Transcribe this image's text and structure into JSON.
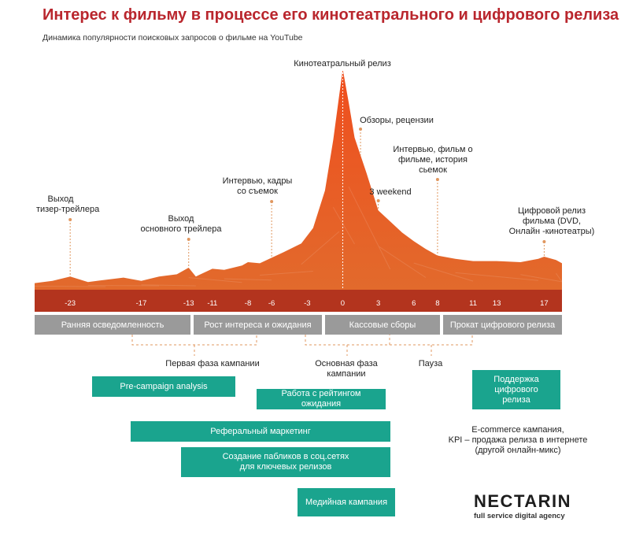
{
  "header": {
    "title": "Интерес к фильму в процессе его кинотеатрального и цифрового релиза",
    "subtitle": "Динамика популярности поисковых запросов о фильме на YouTube"
  },
  "colors": {
    "title": "#b9262d",
    "area_top": "#ef4e1e",
    "area_bottom": "#e06a2a",
    "phase_bar": "#9a9a9a",
    "campaign_bar": "#1aa48e",
    "axis_strip": "#b3341e"
  },
  "chart_data": {
    "type": "area",
    "title": "Динамика популярности поисковых запросов о фильме на YouTube",
    "x_ticks": [
      -23,
      -17,
      -13,
      -11,
      -8,
      -6,
      -3,
      0,
      3,
      6,
      8,
      11,
      13,
      17
    ],
    "xlim": [
      -26,
      18.5
    ],
    "ylim": [
      0,
      100
    ],
    "points": [
      [
        -26,
        3
      ],
      [
        -24.5,
        4
      ],
      [
        -23,
        6
      ],
      [
        -21.5,
        3.5
      ],
      [
        -20,
        4.5
      ],
      [
        -18.5,
        5.5
      ],
      [
        -17,
        4
      ],
      [
        -15.5,
        6
      ],
      [
        -14,
        7
      ],
      [
        -13,
        10
      ],
      [
        -12.4,
        6
      ],
      [
        -11,
        9.5
      ],
      [
        -10,
        9
      ],
      [
        -8.5,
        11
      ],
      [
        -8,
        12.5
      ],
      [
        -7,
        12
      ],
      [
        -6,
        14.5
      ],
      [
        -5,
        17
      ],
      [
        -3.5,
        21
      ],
      [
        -2.5,
        28
      ],
      [
        -1.5,
        45
      ],
      [
        -0.8,
        68
      ],
      [
        -0.3,
        88
      ],
      [
        0,
        100
      ],
      [
        0.5,
        85
      ],
      [
        1,
        69
      ],
      [
        2,
        53
      ],
      [
        3,
        36
      ],
      [
        4,
        31
      ],
      [
        5,
        26
      ],
      [
        6,
        22
      ],
      [
        7,
        18.5
      ],
      [
        8,
        15.5
      ],
      [
        9.5,
        14
      ],
      [
        11,
        13
      ],
      [
        13,
        13
      ],
      [
        15,
        12.5
      ],
      [
        16.5,
        14
      ],
      [
        17,
        15
      ],
      [
        18,
        13.5
      ],
      [
        18.5,
        12
      ]
    ],
    "annotations": [
      {
        "x": -23,
        "label_lines": [
          "Выход",
          "тизер-трейлера"
        ]
      },
      {
        "x": -13,
        "label_lines": [
          "Выход",
          "основного трейлера"
        ]
      },
      {
        "x": -6,
        "label_lines": [
          "Интервью, кадры",
          "со съемок"
        ]
      },
      {
        "x": 0,
        "label_lines": [
          "Кинотеатральный релиз"
        ]
      },
      {
        "x": 1.5,
        "label_lines": [
          "Обзоры, рецензии"
        ]
      },
      {
        "x": 3,
        "label_lines": [
          "3 weekend"
        ]
      },
      {
        "x": 8,
        "label_lines": [
          "Интервью, фильм о",
          "фильме, история",
          "сьемок"
        ]
      },
      {
        "x": 17,
        "label_lines": [
          "Цифровой релиз",
          "фильма (DVD,",
          "Онлайн -кинотеатры)"
        ]
      }
    ]
  },
  "phases": [
    {
      "label": "Ранняя осведомленность"
    },
    {
      "label": "Рост интереса и ожидания"
    },
    {
      "label": "Кассовые сборы"
    },
    {
      "label": "Прокат цифрового релиза"
    }
  ],
  "notes": {
    "first_phase": "Первая фаза кампании",
    "main_phase": "Основная фаза кампании",
    "pause": "Пауза",
    "ecommerce": "E-commerce кампания,\nKPI – продажа релиза в интернете\n(другой онлайн-микс)"
  },
  "campaigns": [
    {
      "label": "Pre-campaign analysis"
    },
    {
      "label": "Работа с рейтингом ожидания"
    },
    {
      "label": "Реферальный маркетинг"
    },
    {
      "label": "Создание пабликов в соц.сетях\nдля ключевых релизов"
    },
    {
      "label": "Медийная кампания"
    },
    {
      "label": "Поддержка\nцифрового\nрелиза"
    }
  ],
  "brand": {
    "name": "NECTARIN",
    "tagline": "full service digital agency"
  }
}
